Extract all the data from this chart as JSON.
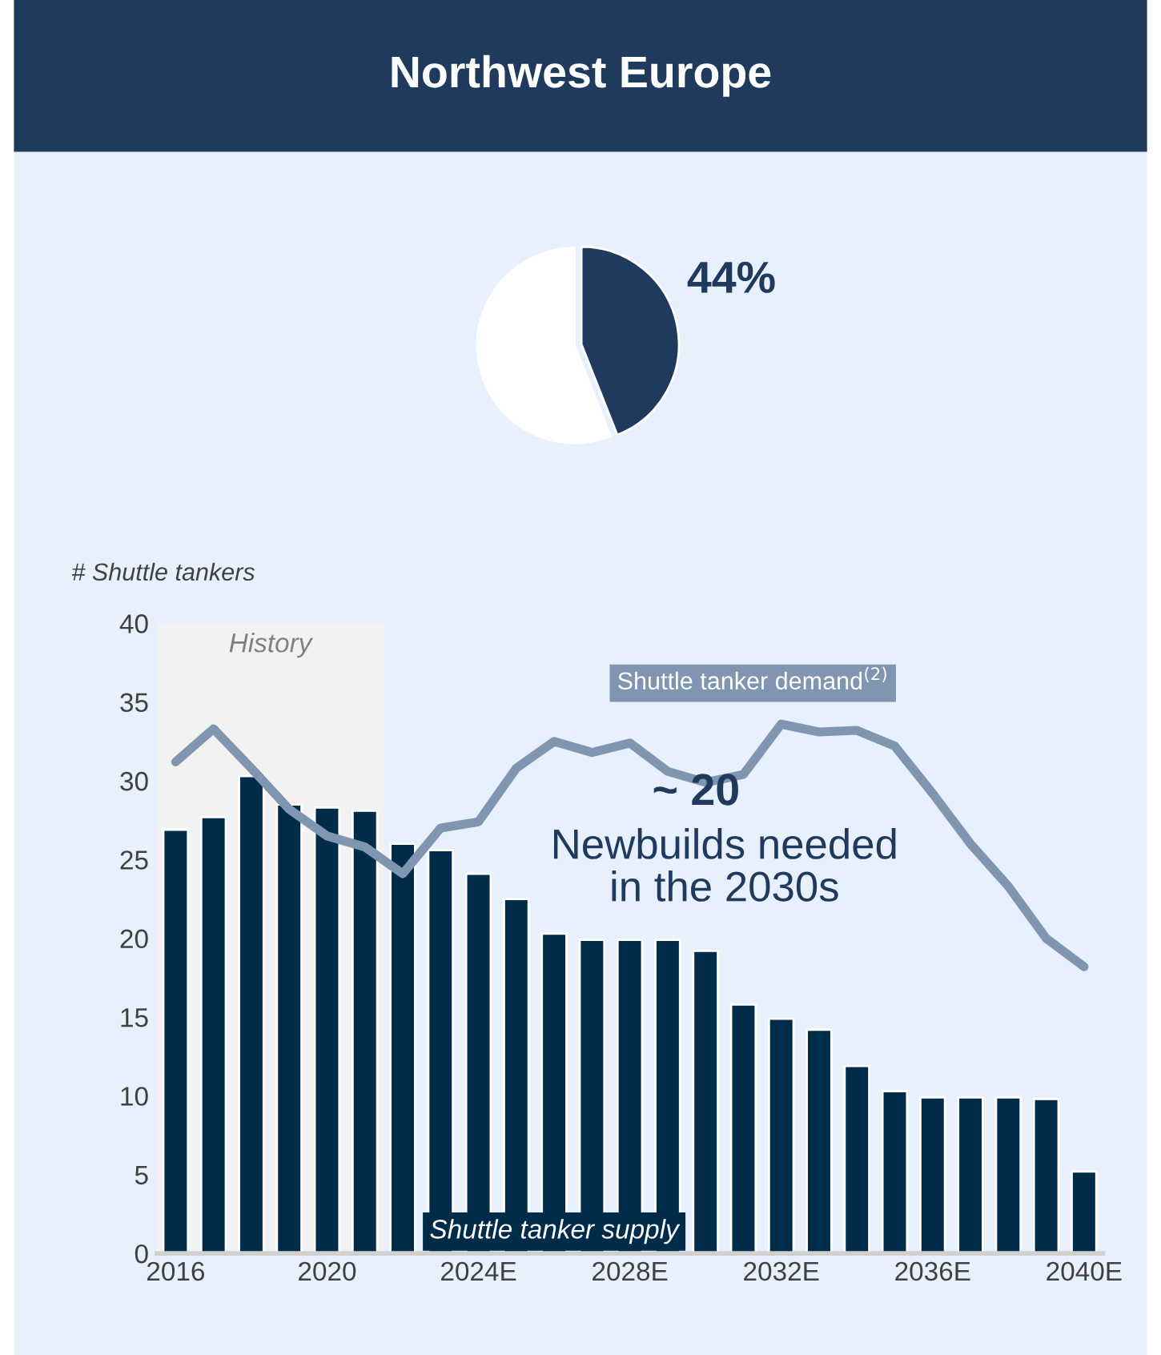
{
  "chart_data": [
    {
      "type": "pie",
      "title": "Northwest Europe",
      "categories": [
        null,
        null
      ],
      "values": [
        44,
        56
      ],
      "colors": [
        "#1f3a5c",
        "#ffffff"
      ],
      "value_labels": [
        "44%",
        null
      ]
    },
    {
      "type": "bar",
      "ylabel": "# Shuttle tankers",
      "x": [
        2016,
        2017,
        2018,
        2019,
        2020,
        2021,
        2022,
        2023,
        2024,
        2025,
        2026,
        2027,
        2028,
        2029,
        2030,
        2031,
        2032,
        2033,
        2034,
        2035,
        2036,
        2037,
        2038,
        2039,
        2040
      ],
      "xlim": [
        2015.5,
        2040.5
      ],
      "xticks": [
        2016,
        2020,
        {
          "value": 2024,
          "label": "2024E"
        },
        {
          "value": 2028,
          "label": "2028E"
        },
        {
          "value": 2032,
          "label": "2032E"
        },
        {
          "value": 2036,
          "label": "2036E"
        },
        {
          "value": 2040,
          "label": "2040E"
        }
      ],
      "ylim": [
        0,
        40
      ],
      "yticks": [
        0,
        5,
        10,
        15,
        20,
        25,
        30,
        35,
        40
      ],
      "series": [
        {
          "name": "Shuttle tanker supply",
          "type": "bar",
          "color": "#002b49",
          "values": [
            26.9,
            27.7,
            30.3,
            28.5,
            28.3,
            28.1,
            26.0,
            25.6,
            24.1,
            22.5,
            20.3,
            19.9,
            19.9,
            19.9,
            19.2,
            15.8,
            14.9,
            14.2,
            11.9,
            10.3,
            9.9,
            9.9,
            9.9,
            9.8,
            5.2
          ]
        },
        {
          "name": "Shuttle tanker demand$^{(2)}$",
          "type": "line",
          "color": "#8096b0",
          "values": [
            31.2,
            33.3,
            30.8,
            28.2,
            26.5,
            25.8,
            24.1,
            27.0,
            27.4,
            30.8,
            32.5,
            31.8,
            32.4,
            30.6,
            29.9,
            30.4,
            33.6,
            33.1,
            33.2,
            32.2,
            29.2,
            26.0,
            23.3,
            20.0,
            18.2
          ]
        }
      ],
      "bands": [
        {
          "axis": "x",
          "from": 2015.5,
          "to": 2021.5,
          "label": "History",
          "color": "#f2f2f2"
        }
      ],
      "annotations": [
        "~ 20",
        "Newbuilds needed\nin the 2030s"
      ],
      "grid": false,
      "legend": false
    }
  ]
}
